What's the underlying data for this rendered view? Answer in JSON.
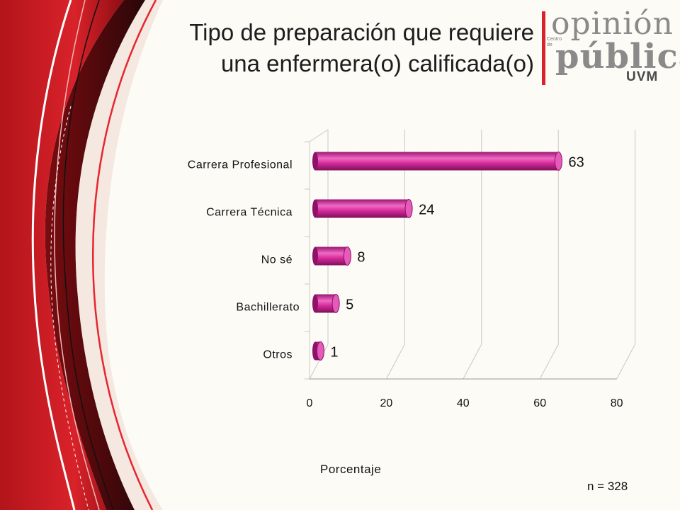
{
  "chart_data": {
    "type": "bar",
    "orientation": "horizontal",
    "title": "Tipo de preparación que requiere una enfermera(o) calificada(o)",
    "title_lines": [
      "Tipo de preparación que requiere",
      "una enfermera(o) calificada(o)"
    ],
    "categories": [
      "Carrera Profesional",
      "Carrera Técnica",
      "No sé",
      "Bachillerato",
      "Otros"
    ],
    "values": [
      63,
      24,
      8,
      5,
      1
    ],
    "data_labels": [
      "63",
      "24",
      "8",
      "5",
      "1"
    ],
    "xlabel": "Porcentaje",
    "ylabel": "",
    "xlim": [
      0,
      80
    ],
    "ticks": [
      "0",
      "20",
      "40",
      "60",
      "80"
    ],
    "grid": true,
    "legend": "none",
    "style": "3d-cylinder",
    "bar_color": "#c8238f",
    "note": "n = 328"
  },
  "logo": {
    "line1": "opinión",
    "line2": "pública",
    "line3": "UVM",
    "tag": "Centro de",
    "accent_color": "#d8232a"
  }
}
